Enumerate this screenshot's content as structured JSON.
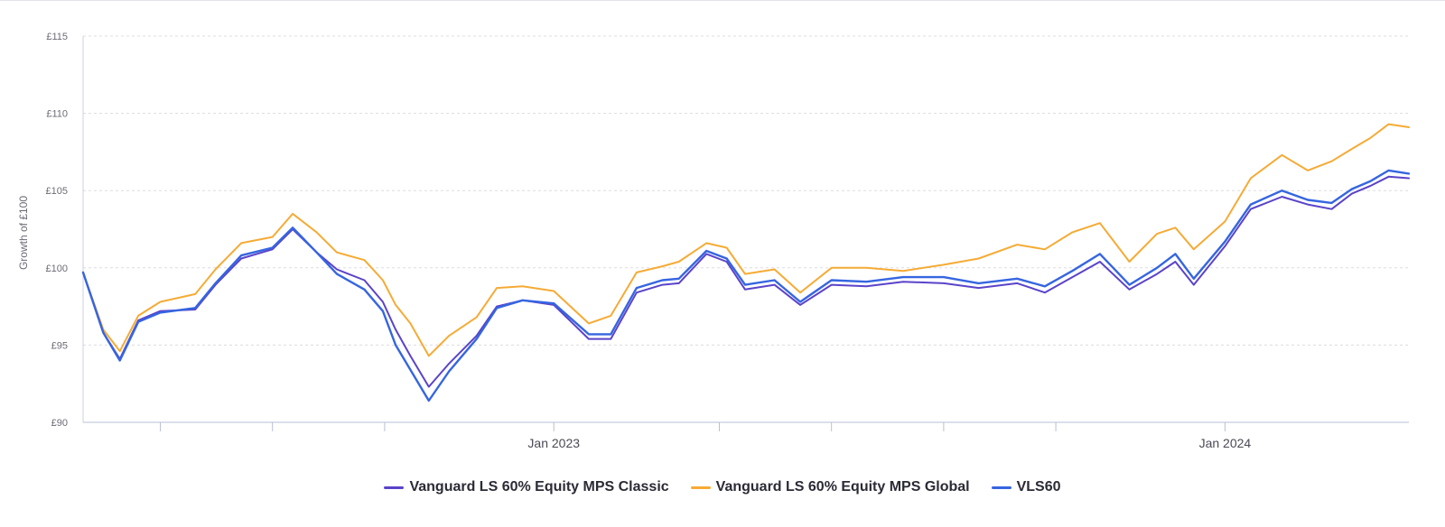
{
  "chart_data": {
    "type": "line",
    "ylabel": "Growth of £100",
    "ylim": [
      90,
      115
    ],
    "yticks": [
      "£90",
      "£95",
      "£100",
      "£105",
      "£110",
      "£115"
    ],
    "ytick_values": [
      90,
      95,
      100,
      105,
      110,
      115
    ],
    "xlim": [
      "2022-04-20",
      "2024-04-10"
    ],
    "xticks": [
      {
        "date": "2022-06-01",
        "label": ""
      },
      {
        "date": "2022-08-01",
        "label": ""
      },
      {
        "date": "2022-10-01",
        "label": ""
      },
      {
        "date": "2023-01-01",
        "label": "Jan 2023"
      },
      {
        "date": "2023-04-01",
        "label": ""
      },
      {
        "date": "2023-06-01",
        "label": ""
      },
      {
        "date": "2023-08-01",
        "label": ""
      },
      {
        "date": "2023-10-01",
        "label": ""
      },
      {
        "date": "2024-01-01",
        "label": "Jan 2024"
      }
    ],
    "grid": true,
    "legend_position": "bottom",
    "series": [
      {
        "name": "Vanguard LS 60% Equity MPS Classic",
        "color": "#5b43c9",
        "points": [
          [
            "2022-04-20",
            99.7
          ],
          [
            "2022-05-01",
            95.8
          ],
          [
            "2022-05-10",
            94.1
          ],
          [
            "2022-05-20",
            96.6
          ],
          [
            "2022-06-01",
            97.2
          ],
          [
            "2022-06-20",
            97.3
          ],
          [
            "2022-07-01",
            98.9
          ],
          [
            "2022-07-15",
            100.6
          ],
          [
            "2022-08-01",
            101.2
          ],
          [
            "2022-08-12",
            102.5
          ],
          [
            "2022-08-25",
            101.0
          ],
          [
            "2022-09-05",
            99.9
          ],
          [
            "2022-09-20",
            99.2
          ],
          [
            "2022-09-30",
            97.8
          ],
          [
            "2022-10-07",
            96.0
          ],
          [
            "2022-10-15",
            94.3
          ],
          [
            "2022-10-25",
            92.3
          ],
          [
            "2022-11-05",
            93.8
          ],
          [
            "2022-11-20",
            95.6
          ],
          [
            "2022-12-01",
            97.5
          ],
          [
            "2022-12-15",
            97.9
          ],
          [
            "2023-01-01",
            97.6
          ],
          [
            "2023-01-20",
            95.4
          ],
          [
            "2023-02-01",
            95.4
          ],
          [
            "2023-02-15",
            98.4
          ],
          [
            "2023-03-01",
            98.9
          ],
          [
            "2023-03-10",
            99.0
          ],
          [
            "2023-03-25",
            100.9
          ],
          [
            "2023-04-05",
            100.4
          ],
          [
            "2023-04-15",
            98.6
          ],
          [
            "2023-05-01",
            98.9
          ],
          [
            "2023-05-15",
            97.6
          ],
          [
            "2023-06-01",
            98.9
          ],
          [
            "2023-06-20",
            98.8
          ],
          [
            "2023-07-10",
            99.1
          ],
          [
            "2023-08-01",
            99.0
          ],
          [
            "2023-08-20",
            98.7
          ],
          [
            "2023-09-10",
            99.0
          ],
          [
            "2023-09-25",
            98.4
          ],
          [
            "2023-10-10",
            99.4
          ],
          [
            "2023-10-25",
            100.4
          ],
          [
            "2023-11-10",
            98.6
          ],
          [
            "2023-11-25",
            99.6
          ],
          [
            "2023-12-05",
            100.4
          ],
          [
            "2023-12-15",
            98.9
          ],
          [
            "2024-01-01",
            101.4
          ],
          [
            "2024-01-15",
            103.8
          ],
          [
            "2024-02-01",
            104.6
          ],
          [
            "2024-02-15",
            104.1
          ],
          [
            "2024-02-28",
            103.8
          ],
          [
            "2024-03-10",
            104.8
          ],
          [
            "2024-03-20",
            105.3
          ],
          [
            "2024-03-30",
            105.9
          ],
          [
            "2024-04-10",
            105.8
          ]
        ]
      },
      {
        "name": "Vanguard LS 60% Equity MPS Global",
        "color": "#f5ab35",
        "points": [
          [
            "2022-04-20",
            99.7
          ],
          [
            "2022-05-01",
            96.0
          ],
          [
            "2022-05-10",
            94.6
          ],
          [
            "2022-05-20",
            96.9
          ],
          [
            "2022-06-01",
            97.8
          ],
          [
            "2022-06-20",
            98.3
          ],
          [
            "2022-07-01",
            99.9
          ],
          [
            "2022-07-15",
            101.6
          ],
          [
            "2022-08-01",
            102.0
          ],
          [
            "2022-08-12",
            103.5
          ],
          [
            "2022-08-25",
            102.3
          ],
          [
            "2022-09-05",
            101.0
          ],
          [
            "2022-09-20",
            100.5
          ],
          [
            "2022-09-30",
            99.2
          ],
          [
            "2022-10-07",
            97.6
          ],
          [
            "2022-10-15",
            96.4
          ],
          [
            "2022-10-25",
            94.3
          ],
          [
            "2022-11-05",
            95.6
          ],
          [
            "2022-11-20",
            96.8
          ],
          [
            "2022-12-01",
            98.7
          ],
          [
            "2022-12-15",
            98.8
          ],
          [
            "2023-01-01",
            98.5
          ],
          [
            "2023-01-20",
            96.4
          ],
          [
            "2023-02-01",
            96.9
          ],
          [
            "2023-02-15",
            99.7
          ],
          [
            "2023-03-01",
            100.1
          ],
          [
            "2023-03-10",
            100.4
          ],
          [
            "2023-03-25",
            101.6
          ],
          [
            "2023-04-05",
            101.3
          ],
          [
            "2023-04-15",
            99.6
          ],
          [
            "2023-05-01",
            99.9
          ],
          [
            "2023-05-15",
            98.4
          ],
          [
            "2023-06-01",
            100.0
          ],
          [
            "2023-06-20",
            100.0
          ],
          [
            "2023-07-10",
            99.8
          ],
          [
            "2023-08-01",
            100.2
          ],
          [
            "2023-08-20",
            100.6
          ],
          [
            "2023-09-10",
            101.5
          ],
          [
            "2023-09-25",
            101.2
          ],
          [
            "2023-10-10",
            102.3
          ],
          [
            "2023-10-25",
            102.9
          ],
          [
            "2023-11-10",
            100.4
          ],
          [
            "2023-11-25",
            102.2
          ],
          [
            "2023-12-05",
            102.6
          ],
          [
            "2023-12-15",
            101.2
          ],
          [
            "2024-01-01",
            103.0
          ],
          [
            "2024-01-15",
            105.8
          ],
          [
            "2024-02-01",
            107.3
          ],
          [
            "2024-02-15",
            106.3
          ],
          [
            "2024-02-28",
            106.9
          ],
          [
            "2024-03-10",
            107.7
          ],
          [
            "2024-03-20",
            108.4
          ],
          [
            "2024-03-30",
            109.3
          ],
          [
            "2024-04-10",
            109.1
          ]
        ]
      },
      {
        "name": "VLS60",
        "color": "#3565e0",
        "points": [
          [
            "2022-04-20",
            99.7
          ],
          [
            "2022-05-01",
            95.8
          ],
          [
            "2022-05-10",
            94.0
          ],
          [
            "2022-05-20",
            96.5
          ],
          [
            "2022-06-01",
            97.1
          ],
          [
            "2022-06-20",
            97.4
          ],
          [
            "2022-07-01",
            99.0
          ],
          [
            "2022-07-15",
            100.8
          ],
          [
            "2022-08-01",
            101.3
          ],
          [
            "2022-08-12",
            102.6
          ],
          [
            "2022-08-25",
            101.0
          ],
          [
            "2022-09-05",
            99.6
          ],
          [
            "2022-09-20",
            98.6
          ],
          [
            "2022-09-30",
            97.2
          ],
          [
            "2022-10-07",
            95.0
          ],
          [
            "2022-10-15",
            93.4
          ],
          [
            "2022-10-25",
            91.4
          ],
          [
            "2022-11-05",
            93.3
          ],
          [
            "2022-11-20",
            95.4
          ],
          [
            "2022-12-01",
            97.4
          ],
          [
            "2022-12-15",
            97.9
          ],
          [
            "2023-01-01",
            97.7
          ],
          [
            "2023-01-20",
            95.7
          ],
          [
            "2023-02-01",
            95.7
          ],
          [
            "2023-02-15",
            98.7
          ],
          [
            "2023-03-01",
            99.2
          ],
          [
            "2023-03-10",
            99.3
          ],
          [
            "2023-03-25",
            101.1
          ],
          [
            "2023-04-05",
            100.6
          ],
          [
            "2023-04-15",
            98.9
          ],
          [
            "2023-05-01",
            99.2
          ],
          [
            "2023-05-15",
            97.8
          ],
          [
            "2023-06-01",
            99.2
          ],
          [
            "2023-06-20",
            99.1
          ],
          [
            "2023-07-10",
            99.4
          ],
          [
            "2023-08-01",
            99.4
          ],
          [
            "2023-08-20",
            99.0
          ],
          [
            "2023-09-10",
            99.3
          ],
          [
            "2023-09-25",
            98.8
          ],
          [
            "2023-10-10",
            99.8
          ],
          [
            "2023-10-25",
            100.9
          ],
          [
            "2023-11-10",
            98.9
          ],
          [
            "2023-11-25",
            100.0
          ],
          [
            "2023-12-05",
            100.9
          ],
          [
            "2023-12-15",
            99.3
          ],
          [
            "2024-01-01",
            101.7
          ],
          [
            "2024-01-15",
            104.1
          ],
          [
            "2024-02-01",
            105.0
          ],
          [
            "2024-02-15",
            104.4
          ],
          [
            "2024-02-28",
            104.2
          ],
          [
            "2024-03-10",
            105.1
          ],
          [
            "2024-03-20",
            105.6
          ],
          [
            "2024-03-30",
            106.3
          ],
          [
            "2024-04-10",
            106.1
          ]
        ]
      }
    ]
  }
}
